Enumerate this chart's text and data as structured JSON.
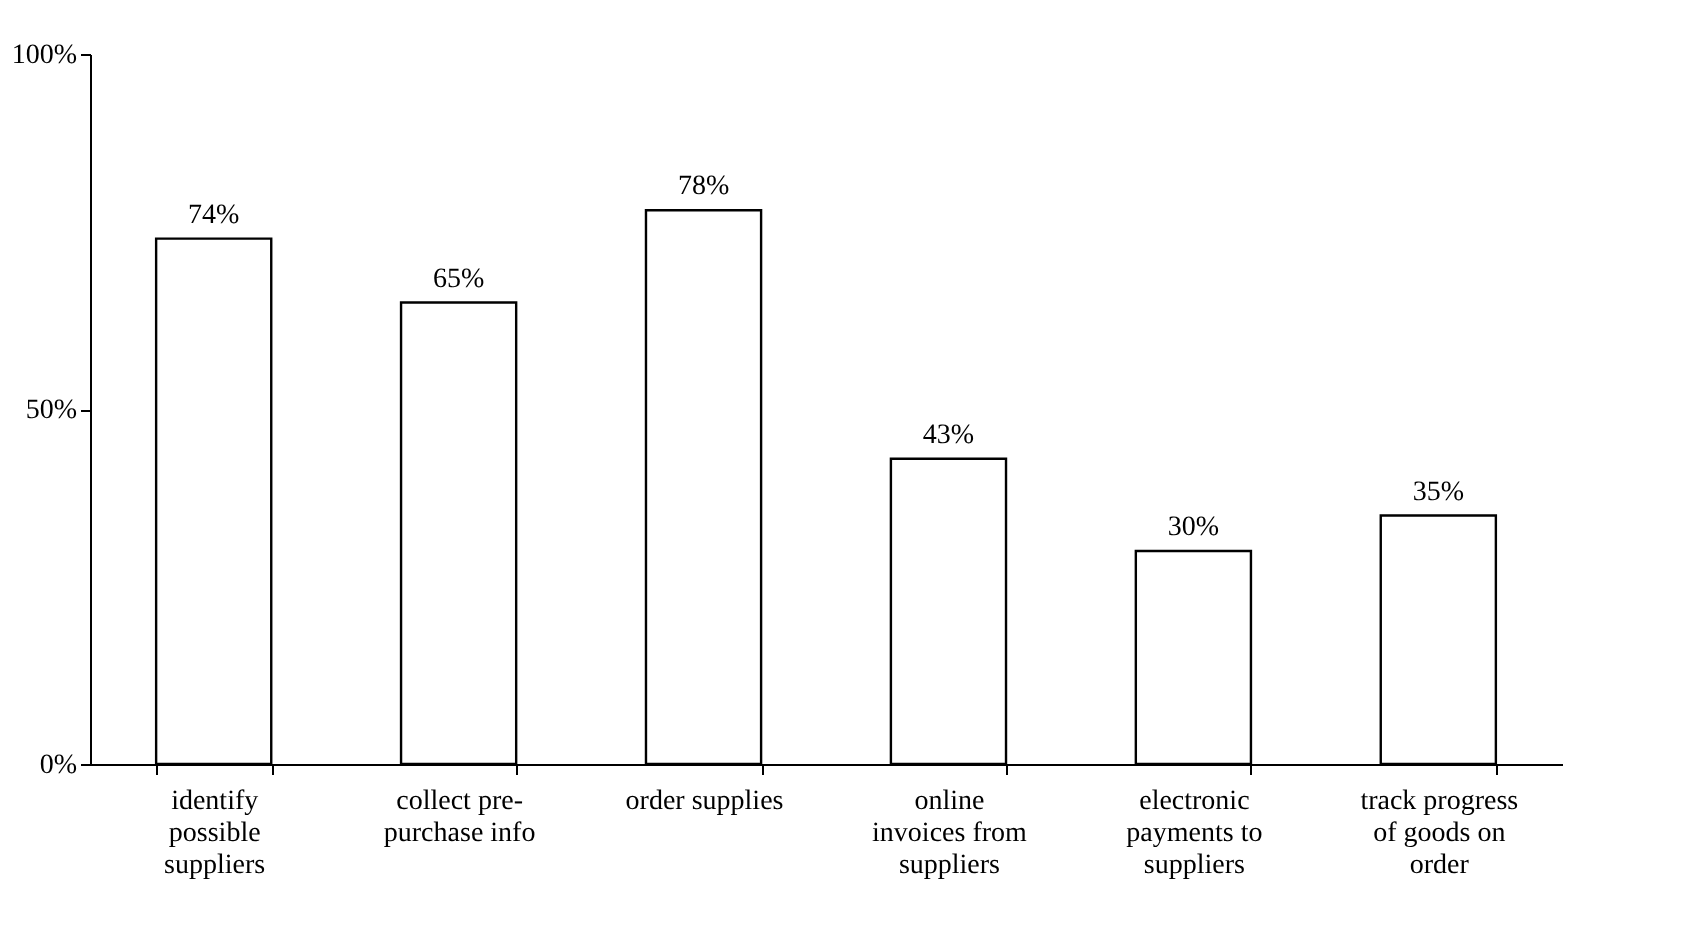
{
  "chart_data": {
    "type": "bar",
    "categories": [
      "identify possible suppliers",
      "collect pre-purchase info",
      "order supplies",
      "online invoices from suppliers",
      "electronic payments to suppliers",
      "track progress of goods on order"
    ],
    "values": [
      74,
      65,
      78,
      43,
      30,
      35
    ],
    "value_labels": [
      "74%",
      "65%",
      "78%",
      "43%",
      "30%",
      "35%"
    ],
    "color": "#ffffff",
    "ylim": [
      0,
      100
    ],
    "yticks": [
      {
        "value": 0,
        "label": "0%"
      },
      {
        "value": 50,
        "label": "50%"
      },
      {
        "value": 100,
        "label": "100%"
      }
    ],
    "grid": false
  }
}
